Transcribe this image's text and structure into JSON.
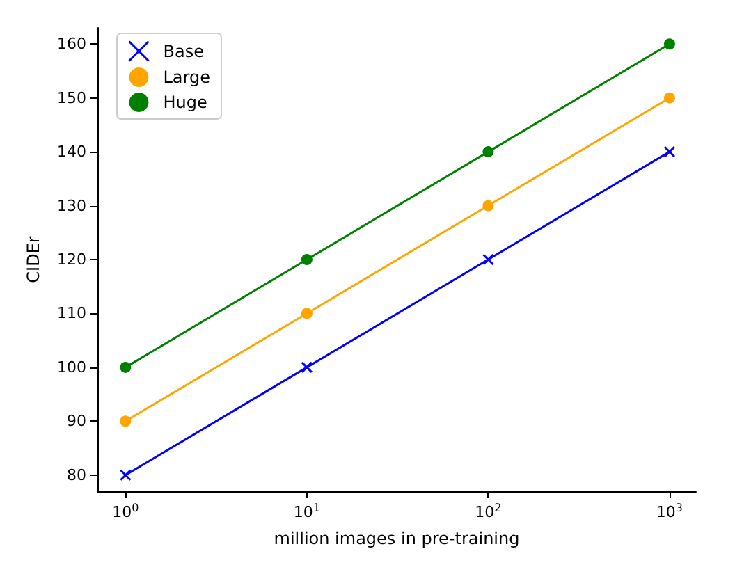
{
  "chart_data": {
    "type": "line",
    "xlabel": "million images in pre-training",
    "ylabel": "CIDEr",
    "x": [
      1,
      10,
      100,
      1000
    ],
    "series": [
      {
        "name": "Base",
        "color": "#0000ff",
        "marker": "cross",
        "values": [
          80,
          100,
          120,
          140
        ]
      },
      {
        "name": "Large",
        "color": "#ffa500",
        "marker": "circle",
        "values": [
          90,
          110,
          130,
          150
        ]
      },
      {
        "name": "Huge",
        "color": "#008000",
        "marker": "circle",
        "values": [
          100,
          120,
          140,
          160
        ]
      }
    ],
    "log": "x",
    "xlim": [
      0.7,
      1400
    ],
    "xticks": [
      {
        "value": 1,
        "label": "10$^{0}$"
      },
      {
        "value": 10,
        "label": "10$^{1}$"
      },
      {
        "value": 100,
        "label": "10$^{2}$"
      },
      {
        "value": 1000,
        "label": "10$^{3}$"
      }
    ],
    "ylim": [
      77,
      163
    ],
    "yticks": [
      80,
      90,
      100,
      110,
      120,
      130,
      140,
      150,
      160
    ],
    "grid": false,
    "legend": "top left",
    "line_style": "solid"
  }
}
